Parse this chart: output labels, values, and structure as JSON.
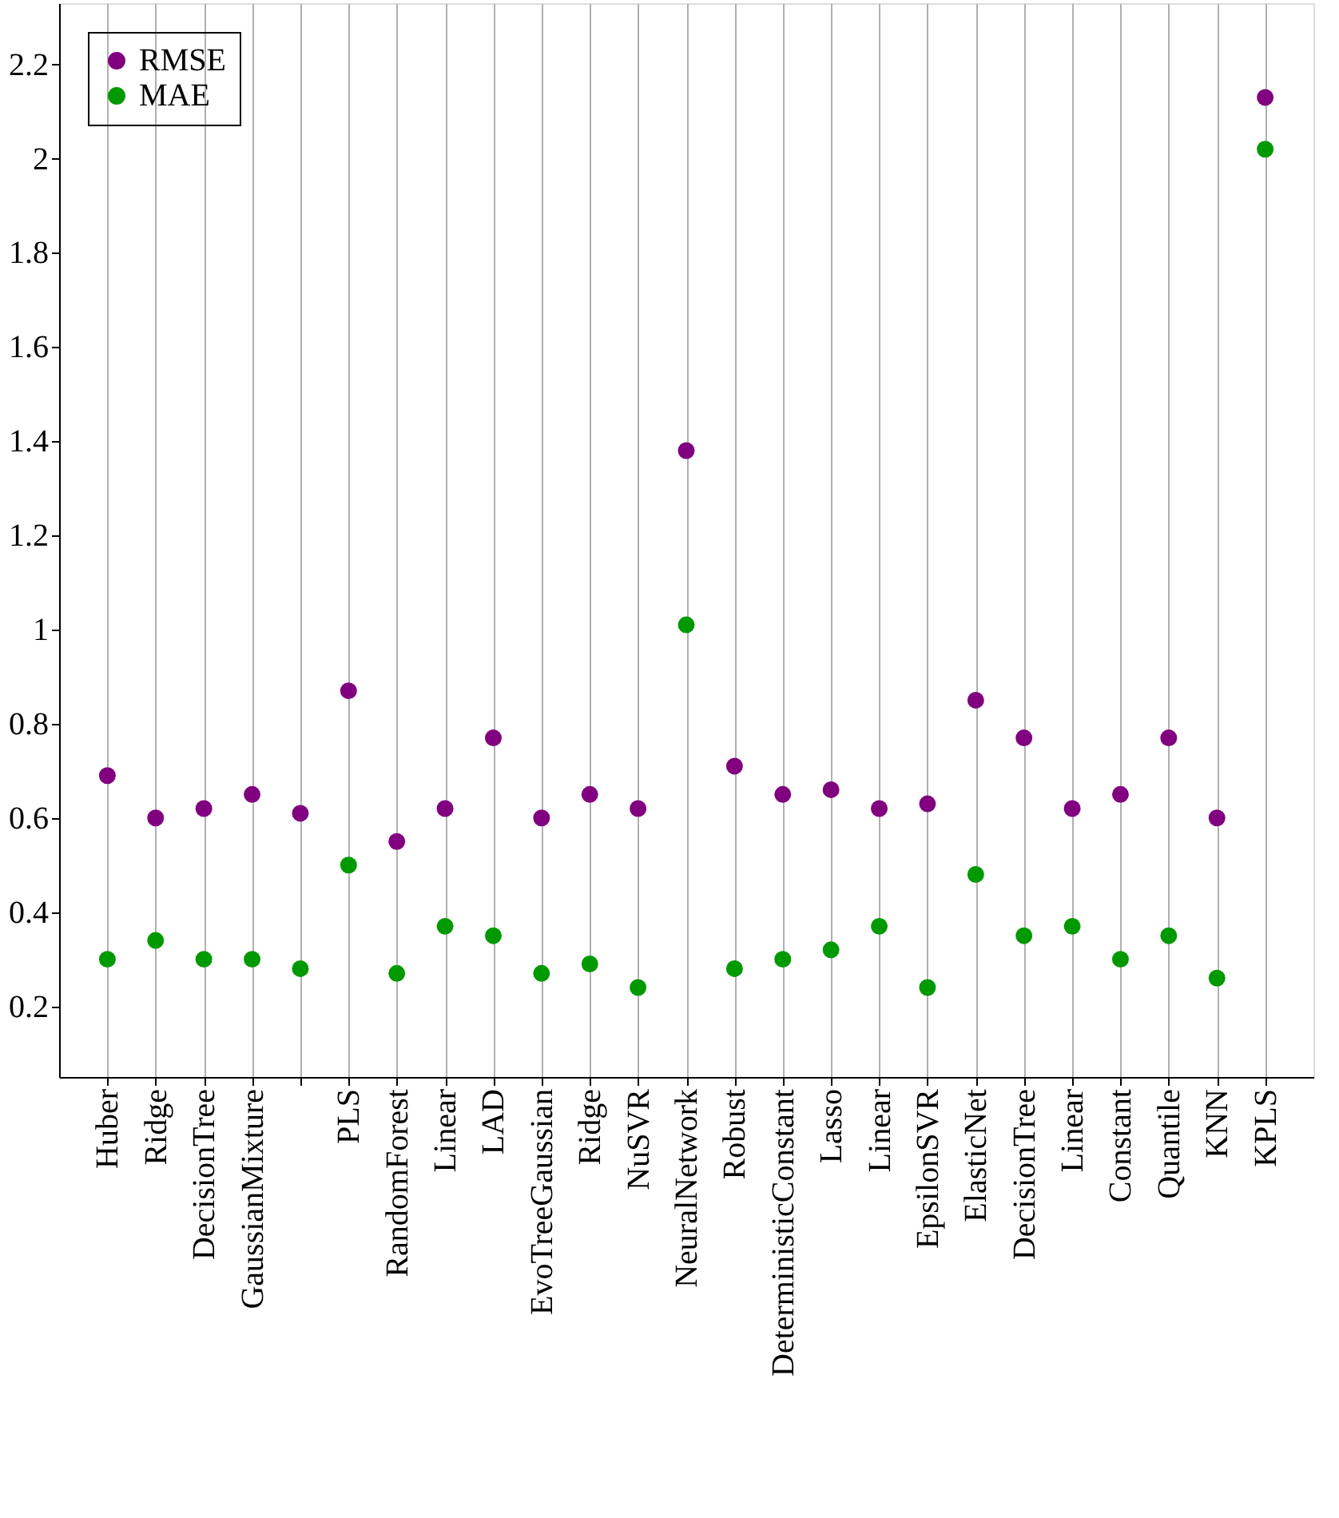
{
  "chart_data": {
    "type": "scatter",
    "categories": [
      "Huber",
      "Ridge",
      "DecisionTree",
      "GaussianMixture",
      null,
      "PLS",
      "RandomForest",
      "Linear",
      "LAD",
      "EvoTreeGaussian",
      "Ridge",
      "NuSVR",
      "NeuralNetwork",
      "Robust",
      "DeterministicConstant",
      "Lasso",
      "Linear",
      "EpsilonSVR",
      "ElasticNet",
      "DecisionTree",
      "Linear",
      "Constant",
      "Quantile",
      "KNN",
      "KPLS"
    ],
    "series": [
      {
        "name": "RMSE",
        "color": "#800080",
        "values": [
          0.69,
          0.6,
          0.62,
          0.65,
          0.61,
          0.87,
          0.55,
          0.62,
          0.77,
          0.6,
          0.65,
          0.62,
          1.38,
          0.71,
          0.65,
          0.66,
          0.62,
          0.63,
          0.85,
          0.77,
          0.62,
          0.65,
          0.77,
          0.6,
          2.13
        ]
      },
      {
        "name": "MAE",
        "color": "#009900",
        "values": [
          0.3,
          0.34,
          0.3,
          0.3,
          0.28,
          0.5,
          0.27,
          0.37,
          0.35,
          0.27,
          0.29,
          0.24,
          1.01,
          0.28,
          0.3,
          0.32,
          0.37,
          0.24,
          0.48,
          0.35,
          0.37,
          0.3,
          0.35,
          0.26,
          2.02
        ]
      }
    ],
    "ylim": [
      0.05,
      2.33
    ],
    "yticks": [
      0.2,
      0.4,
      0.6,
      0.8,
      1,
      1.2,
      1.4,
      1.6,
      1.8,
      2,
      2.2
    ],
    "grid": "x",
    "legend": "top left",
    "marker": "circle"
  }
}
